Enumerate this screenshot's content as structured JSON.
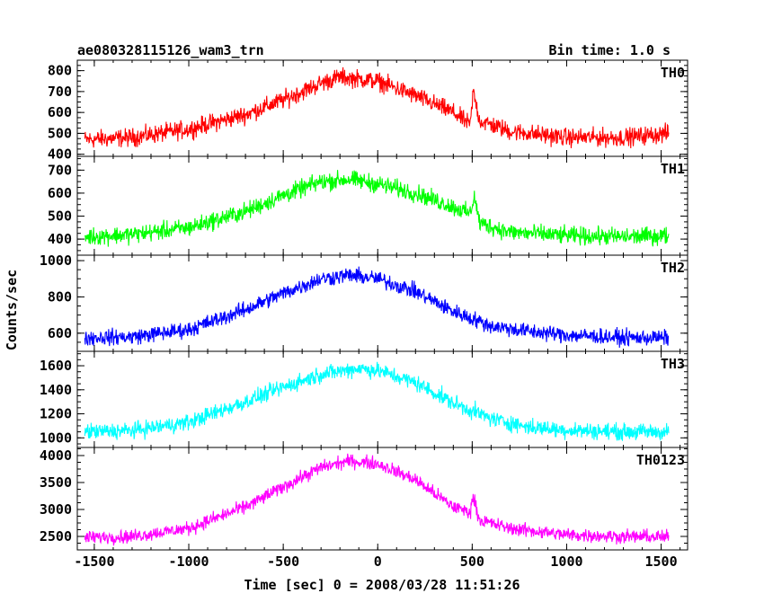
{
  "chart_data": {
    "type": "line",
    "title_left": "ae080328115126_wam3_trn",
    "title_right": "Bin time: 1.0 s",
    "xlabel": "Time [sec] 0 = 2008/03/28 11:51:26",
    "ylabel": "Counts/sec",
    "xlim": [
      -1590,
      1640
    ],
    "x_ticks": [
      "-1500",
      "-1000",
      "-500",
      "0",
      "500",
      "1000",
      "1500"
    ],
    "x_tick_values": [
      -1500,
      -1000,
      -500,
      0,
      500,
      1000,
      1500
    ],
    "x_range_data": [
      -1550,
      1540
    ],
    "panels": [
      {
        "name": "TH0",
        "color": "#ff0000",
        "ylim": [
          390,
          850
        ],
        "y_ticks": [
          400,
          500,
          600,
          700,
          800
        ],
        "y_tick_labels": [
          "400",
          "500",
          "600",
          "700",
          "800"
        ],
        "profile": [
          [
            -1550,
            470
          ],
          [
            -1300,
            480
          ],
          [
            -1000,
            520
          ],
          [
            -700,
            590
          ],
          [
            -500,
            660
          ],
          [
            -300,
            740
          ],
          [
            -200,
            770
          ],
          [
            0,
            750
          ],
          [
            200,
            680
          ],
          [
            400,
            600
          ],
          [
            490,
            540
          ],
          [
            505,
            700
          ],
          [
            540,
            560
          ],
          [
            700,
            510
          ],
          [
            1000,
            480
          ],
          [
            1300,
            480
          ],
          [
            1540,
            500
          ]
        ],
        "noise_amplitude": 45
      },
      {
        "name": "TH1",
        "color": "#00ff00",
        "ylim": [
          330,
          760
        ],
        "y_ticks": [
          400,
          500,
          600,
          700
        ],
        "y_tick_labels": [
          "400",
          "500",
          "600",
          "700"
        ],
        "profile": [
          [
            -1550,
            410
          ],
          [
            -1300,
            420
          ],
          [
            -1000,
            450
          ],
          [
            -700,
            520
          ],
          [
            -500,
            590
          ],
          [
            -300,
            650
          ],
          [
            -150,
            660
          ],
          [
            0,
            640
          ],
          [
            200,
            600
          ],
          [
            400,
            540
          ],
          [
            490,
            510
          ],
          [
            510,
            590
          ],
          [
            540,
            470
          ],
          [
            700,
            430
          ],
          [
            1000,
            415
          ],
          [
            1300,
            410
          ],
          [
            1540,
            415
          ]
        ],
        "noise_amplitude": 40
      },
      {
        "name": "TH2",
        "color": "#0000ff",
        "ylim": [
          500,
          1030
        ],
        "y_ticks": [
          600,
          800,
          1000
        ],
        "y_tick_labels": [
          "600",
          "800",
          "1000"
        ],
        "profile": [
          [
            -1550,
            575
          ],
          [
            -1300,
            580
          ],
          [
            -1000,
            620
          ],
          [
            -700,
            730
          ],
          [
            -500,
            820
          ],
          [
            -300,
            900
          ],
          [
            -150,
            920
          ],
          [
            0,
            900
          ],
          [
            200,
            830
          ],
          [
            400,
            720
          ],
          [
            600,
            640
          ],
          [
            800,
            610
          ],
          [
            1000,
            590
          ],
          [
            1300,
            575
          ],
          [
            1540,
            575
          ]
        ],
        "noise_amplitude": 45
      },
      {
        "name": "TH3",
        "color": "#00ffff",
        "ylim": [
          920,
          1720
        ],
        "y_ticks": [
          1000,
          1200,
          1400,
          1600
        ],
        "y_tick_labels": [
          "1000",
          "1200",
          "1400",
          "1600"
        ],
        "profile": [
          [
            -1550,
            1050
          ],
          [
            -1300,
            1060
          ],
          [
            -1000,
            1130
          ],
          [
            -700,
            1300
          ],
          [
            -500,
            1420
          ],
          [
            -300,
            1530
          ],
          [
            -100,
            1580
          ],
          [
            0,
            1560
          ],
          [
            200,
            1460
          ],
          [
            400,
            1290
          ],
          [
            600,
            1160
          ],
          [
            800,
            1090
          ],
          [
            1000,
            1065
          ],
          [
            1300,
            1050
          ],
          [
            1540,
            1050
          ]
        ],
        "noise_amplitude": 70
      },
      {
        "name": "TH0123",
        "color": "#ff00ff",
        "ylim": [
          2250,
          4150
        ],
        "y_ticks": [
          2500,
          3000,
          3500,
          4000
        ],
        "y_tick_labels": [
          "2500",
          "3000",
          "3500",
          "4000"
        ],
        "profile": [
          [
            -1550,
            2480
          ],
          [
            -1300,
            2500
          ],
          [
            -1000,
            2650
          ],
          [
            -700,
            3050
          ],
          [
            -500,
            3420
          ],
          [
            -300,
            3780
          ],
          [
            -150,
            3900
          ],
          [
            0,
            3850
          ],
          [
            200,
            3550
          ],
          [
            400,
            3050
          ],
          [
            490,
            2950
          ],
          [
            505,
            3250
          ],
          [
            540,
            2800
          ],
          [
            700,
            2650
          ],
          [
            1000,
            2530
          ],
          [
            1300,
            2500
          ],
          [
            1540,
            2490
          ]
        ],
        "noise_amplitude": 130
      }
    ]
  }
}
